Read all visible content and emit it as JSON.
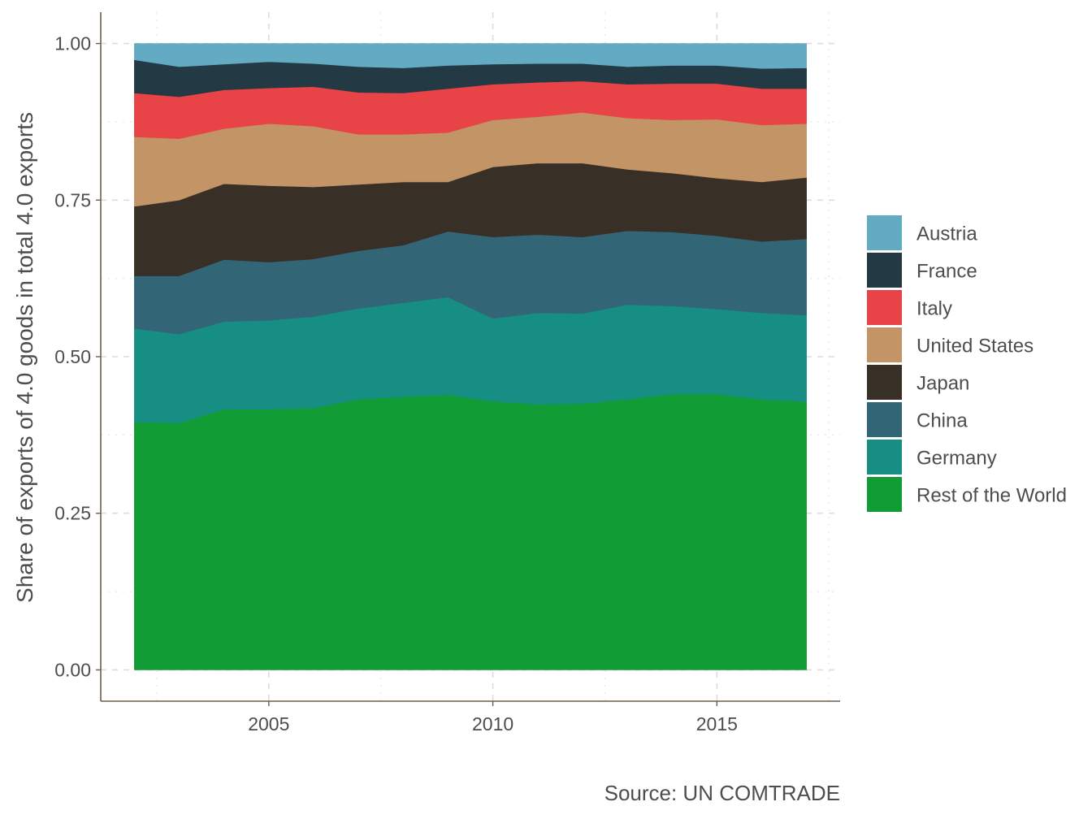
{
  "chart_data": {
    "type": "area",
    "stacked": true,
    "title": "",
    "xlabel": "",
    "ylabel": "Share of exports of 4.0 goods in total 4.0 exports",
    "caption": "Source: UN COMTRADE",
    "x": [
      2002,
      2003,
      2004,
      2005,
      2006,
      2007,
      2008,
      2009,
      2010,
      2011,
      2012,
      2013,
      2014,
      2015,
      2016,
      2017
    ],
    "xlim": [
      2001.25,
      2017.75
    ],
    "ylim": [
      -0.05,
      1.05
    ],
    "x_ticks": [
      2005,
      2010,
      2015
    ],
    "x_tick_labels": [
      "2005",
      "2010",
      "2015"
    ],
    "y_ticks": [
      0,
      0.25,
      0.5,
      0.75,
      1.0
    ],
    "y_tick_labels": [
      "0.00",
      "0.25",
      "0.50",
      "0.75",
      "1.00"
    ],
    "grid": true,
    "legend_position": "right",
    "series": [
      {
        "name": "Rest of the World",
        "color": "#129c35",
        "values": [
          0.396,
          0.394,
          0.416,
          0.416,
          0.418,
          0.432,
          0.436,
          0.439,
          0.429,
          0.424,
          0.425,
          0.432,
          0.44,
          0.44,
          0.432,
          0.428
        ]
      },
      {
        "name": "Germany",
        "color": "#178e83",
        "values": [
          0.149,
          0.142,
          0.14,
          0.142,
          0.146,
          0.145,
          0.15,
          0.156,
          0.132,
          0.146,
          0.144,
          0.151,
          0.141,
          0.136,
          0.138,
          0.138
        ]
      },
      {
        "name": "China",
        "color": "#326676",
        "values": [
          0.084,
          0.093,
          0.099,
          0.093,
          0.092,
          0.092,
          0.092,
          0.105,
          0.13,
          0.125,
          0.122,
          0.118,
          0.118,
          0.117,
          0.114,
          0.122
        ]
      },
      {
        "name": "Japan",
        "color": "#382f27",
        "values": [
          0.111,
          0.121,
          0.121,
          0.122,
          0.115,
          0.106,
          0.101,
          0.079,
          0.112,
          0.114,
          0.118,
          0.098,
          0.094,
          0.092,
          0.095,
          0.098
        ]
      },
      {
        "name": "United States",
        "color": "#c29466",
        "values": [
          0.111,
          0.098,
          0.088,
          0.099,
          0.097,
          0.08,
          0.076,
          0.079,
          0.075,
          0.074,
          0.081,
          0.082,
          0.085,
          0.094,
          0.091,
          0.086
        ]
      },
      {
        "name": "Italy",
        "color": "#e84346",
        "values": [
          0.07,
          0.067,
          0.062,
          0.057,
          0.063,
          0.067,
          0.066,
          0.07,
          0.057,
          0.055,
          0.05,
          0.054,
          0.058,
          0.057,
          0.058,
          0.056
        ]
      },
      {
        "name": "France",
        "color": "#233944",
        "values": [
          0.053,
          0.048,
          0.041,
          0.042,
          0.037,
          0.041,
          0.04,
          0.037,
          0.032,
          0.03,
          0.028,
          0.028,
          0.029,
          0.029,
          0.032,
          0.033
        ]
      },
      {
        "name": "Austria",
        "color": "#63abc3",
        "values": [
          0.026,
          0.037,
          0.033,
          0.029,
          0.032,
          0.037,
          0.039,
          0.035,
          0.033,
          0.032,
          0.032,
          0.037,
          0.035,
          0.035,
          0.04,
          0.039
        ]
      }
    ],
    "legend_order": [
      "Austria",
      "France",
      "Italy",
      "United States",
      "Japan",
      "China",
      "Germany",
      "Rest of the World"
    ]
  }
}
